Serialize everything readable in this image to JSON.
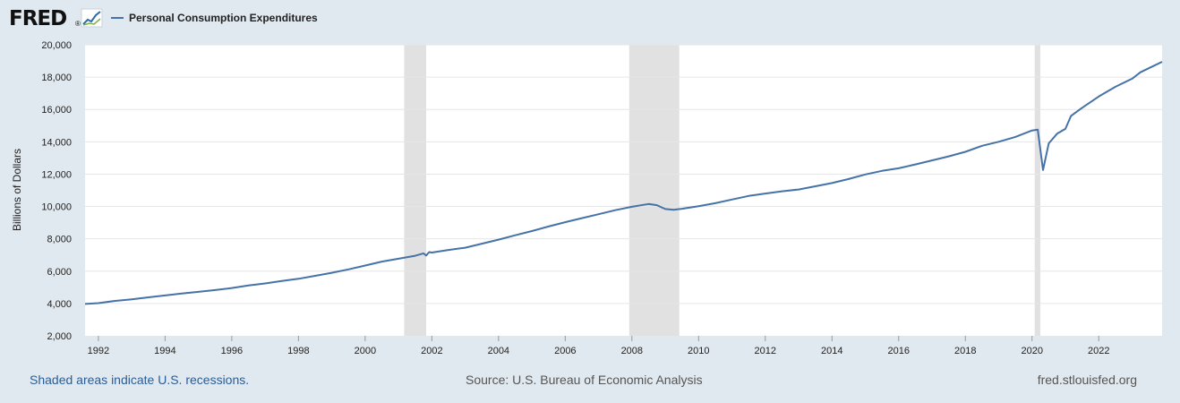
{
  "logo": {
    "text": "FRED",
    "registered": "®"
  },
  "colors": {
    "line": "#4572a7",
    "recession": "#e1e1e1",
    "plot_bg": "#ffffff",
    "grid": "#e6e6e6",
    "page_bg": "#e1e9f0"
  },
  "footer": {
    "note": "Shaded areas indicate U.S. recessions.",
    "source": "Source: U.S. Bureau of Economic Analysis",
    "site": "fred.stlouisfed.org"
  },
  "chart_data": {
    "type": "line",
    "title": "",
    "ylabel": "Billions of Dollars",
    "xlim": [
      1991.6,
      2023.9
    ],
    "ylim": [
      2000,
      20000
    ],
    "y_ticks": [
      2000,
      4000,
      6000,
      8000,
      10000,
      12000,
      14000,
      16000,
      18000,
      20000
    ],
    "y_tick_labels": [
      "2,000",
      "4,000",
      "6,000",
      "8,000",
      "10,000",
      "12,000",
      "14,000",
      "16,000",
      "18,000",
      "20,000"
    ],
    "x_ticks": [
      1992,
      1994,
      1996,
      1998,
      2000,
      2002,
      2004,
      2006,
      2008,
      2010,
      2012,
      2014,
      2016,
      2018,
      2020,
      2022
    ],
    "x_tick_labels": [
      "1992",
      "1994",
      "1996",
      "1998",
      "2000",
      "2002",
      "2004",
      "2006",
      "2008",
      "2010",
      "2012",
      "2014",
      "2016",
      "2018",
      "2020",
      "2022"
    ],
    "grid": true,
    "recessions": [
      [
        2001.17,
        2001.83
      ],
      [
        2007.92,
        2009.42
      ],
      [
        2020.08,
        2020.25
      ]
    ],
    "series": [
      {
        "name": "Personal Consumption Expenditures",
        "points": [
          [
            1991.6,
            3970
          ],
          [
            1992.0,
            4020
          ],
          [
            1992.5,
            4160
          ],
          [
            1993.0,
            4260
          ],
          [
            1993.5,
            4380
          ],
          [
            1994.0,
            4500
          ],
          [
            1994.5,
            4620
          ],
          [
            1995.0,
            4720
          ],
          [
            1995.5,
            4830
          ],
          [
            1996.0,
            4960
          ],
          [
            1996.5,
            5110
          ],
          [
            1997.0,
            5240
          ],
          [
            1997.5,
            5390
          ],
          [
            1998.0,
            5530
          ],
          [
            1998.5,
            5710
          ],
          [
            1999.0,
            5900
          ],
          [
            1999.5,
            6110
          ],
          [
            2000.0,
            6350
          ],
          [
            2000.5,
            6590
          ],
          [
            2001.0,
            6770
          ],
          [
            2001.5,
            6950
          ],
          [
            2001.75,
            7100
          ],
          [
            2001.83,
            6970
          ],
          [
            2001.92,
            7180
          ],
          [
            2002.0,
            7150
          ],
          [
            2002.5,
            7310
          ],
          [
            2003.0,
            7450
          ],
          [
            2003.5,
            7700
          ],
          [
            2004.0,
            7950
          ],
          [
            2004.5,
            8220
          ],
          [
            2005.0,
            8480
          ],
          [
            2005.5,
            8760
          ],
          [
            2006.0,
            9030
          ],
          [
            2006.5,
            9280
          ],
          [
            2007.0,
            9520
          ],
          [
            2007.5,
            9770
          ],
          [
            2008.0,
            9980
          ],
          [
            2008.5,
            10150
          ],
          [
            2008.75,
            10080
          ],
          [
            2009.0,
            9840
          ],
          [
            2009.25,
            9800
          ],
          [
            2009.5,
            9860
          ],
          [
            2010.0,
            10020
          ],
          [
            2010.5,
            10200
          ],
          [
            2011.0,
            10430
          ],
          [
            2011.5,
            10650
          ],
          [
            2012.0,
            10800
          ],
          [
            2012.5,
            10940
          ],
          [
            2013.0,
            11050
          ],
          [
            2013.5,
            11250
          ],
          [
            2014.0,
            11450
          ],
          [
            2014.5,
            11700
          ],
          [
            2015.0,
            11980
          ],
          [
            2015.5,
            12200
          ],
          [
            2016.0,
            12360
          ],
          [
            2016.5,
            12600
          ],
          [
            2017.0,
            12850
          ],
          [
            2017.5,
            13100
          ],
          [
            2018.0,
            13380
          ],
          [
            2018.5,
            13750
          ],
          [
            2019.0,
            14000
          ],
          [
            2019.5,
            14300
          ],
          [
            2020.0,
            14700
          ],
          [
            2020.17,
            14750
          ],
          [
            2020.33,
            12250
          ],
          [
            2020.5,
            13900
          ],
          [
            2020.75,
            14500
          ],
          [
            2021.0,
            14800
          ],
          [
            2021.17,
            15600
          ],
          [
            2021.5,
            16100
          ],
          [
            2022.0,
            16800
          ],
          [
            2022.5,
            17400
          ],
          [
            2023.0,
            17900
          ],
          [
            2023.25,
            18300
          ],
          [
            2023.5,
            18550
          ],
          [
            2023.9,
            18950
          ]
        ]
      }
    ]
  }
}
